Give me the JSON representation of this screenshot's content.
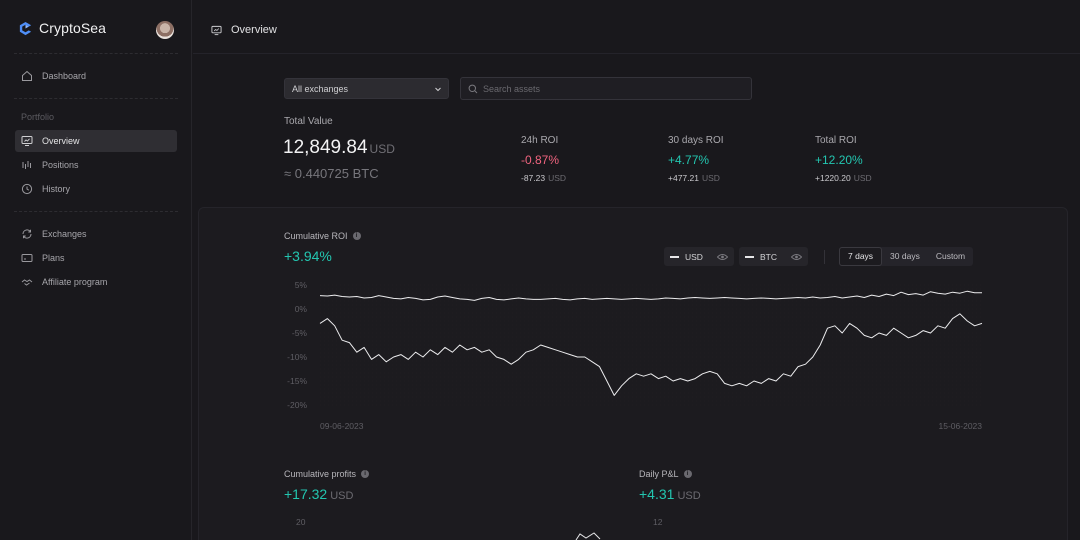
{
  "brand": {
    "name": "CryptoSea"
  },
  "sidebar": {
    "top_items": [
      {
        "label": "Dashboard",
        "icon": "home-icon"
      }
    ],
    "section_label": "Portfolio",
    "portfolio_items": [
      {
        "label": "Overview",
        "icon": "monitor-icon",
        "active": true
      },
      {
        "label": "Positions",
        "icon": "bars-icon"
      },
      {
        "label": "History",
        "icon": "clock-icon"
      }
    ],
    "bottom_items": [
      {
        "label": "Exchanges",
        "icon": "refresh-icon"
      },
      {
        "label": "Plans",
        "icon": "card-icon"
      },
      {
        "label": "Affiliate program",
        "icon": "handshake-icon"
      }
    ]
  },
  "header": {
    "title": "Overview"
  },
  "filters": {
    "exchange_selected": "All exchanges",
    "search_placeholder": "Search assets"
  },
  "totals": {
    "label": "Total Value",
    "value": "12,849.84",
    "unit": "USD",
    "btc": "≈ 0.440725 BTC"
  },
  "roi": [
    {
      "label": "24h ROI",
      "pct": "-0.87%",
      "abs": "-87.23",
      "unit": "USD",
      "color": "#f0647f"
    },
    {
      "label": "30 days ROI",
      "pct": "+4.77%",
      "abs": "+477.21",
      "unit": "USD",
      "color": "#23c6b0"
    },
    {
      "label": "Total ROI",
      "pct": "+12.20%",
      "abs": "+1220.20",
      "unit": "USD",
      "color": "#23c6b0"
    }
  ],
  "cumulative_roi": {
    "label": "Cumulative ROI",
    "value": "+3.94%",
    "toggles": [
      {
        "label": "USD"
      },
      {
        "label": "BTC"
      }
    ],
    "ranges": [
      {
        "label": "7 days",
        "active": true
      },
      {
        "label": "30 days"
      },
      {
        "label": "Custom"
      }
    ]
  },
  "chart_data": {
    "type": "line",
    "xlabel": "",
    "ylabel": "",
    "x_start": "09-06-2023",
    "x_end": "15-06-2023",
    "y_ticks": [
      "5%",
      "0%",
      "-5%",
      "-10%",
      "-15%",
      "-20%"
    ],
    "ylim": [
      -20,
      5
    ],
    "series": [
      {
        "values": [
          2.8,
          2.7,
          2.9,
          2.6,
          2.5,
          2.6,
          2.3,
          2.4,
          2.8,
          2.5,
          2.2,
          2.1,
          2.4,
          2.2,
          1.9,
          2.0,
          2.5,
          2.7,
          2.4,
          2.1,
          2.0,
          1.8,
          2.2,
          2.4,
          2.0,
          1.9,
          2.1,
          2.3,
          2.1,
          2.0,
          2.0,
          2.1,
          2.2,
          2.0,
          1.9,
          2.1,
          2.2,
          2.0,
          2.1,
          2.2,
          2.1,
          2.0,
          2.1,
          2.2,
          2.1,
          2.0,
          2.1,
          2.3,
          2.2,
          2.1,
          2.3,
          2.4,
          2.3,
          2.2,
          2.3,
          2.4,
          2.3,
          2.2,
          2.1,
          2.2,
          2.3,
          2.2,
          2.1,
          2.2,
          2.3,
          2.4,
          2.3,
          2.5,
          2.3,
          2.4,
          2.6,
          2.3,
          2.5,
          2.7,
          2.4,
          2.9,
          2.6,
          3.1,
          2.8,
          3.5,
          3.0,
          3.2,
          2.9,
          3.6,
          3.3,
          3.1,
          3.5,
          3.3,
          3.7,
          3.4,
          3.4
        ]
      },
      {
        "values": [
          -3.0,
          -2.0,
          -3.5,
          -6.5,
          -7.0,
          -9.0,
          -8.0,
          -10.5,
          -9.5,
          -11.0,
          -10.0,
          -9.5,
          -10.5,
          -9.0,
          -10.0,
          -8.5,
          -9.5,
          -8.0,
          -9.0,
          -7.5,
          -8.5,
          -8.0,
          -9.0,
          -8.5,
          -10.0,
          -10.5,
          -11.5,
          -10.5,
          -9.0,
          -8.5,
          -7.5,
          -8.0,
          -8.5,
          -9.0,
          -9.5,
          -10.0,
          -10.0,
          -11.0,
          -12.0,
          -15.0,
          -18.0,
          -16.0,
          -14.5,
          -13.5,
          -14.0,
          -13.5,
          -14.5,
          -14.0,
          -15.0,
          -14.5,
          -15.0,
          -14.5,
          -13.5,
          -13.0,
          -13.5,
          -15.5,
          -16.0,
          -15.5,
          -16.0,
          -15.0,
          -15.5,
          -14.5,
          -15.0,
          -13.5,
          -14.0,
          -12.0,
          -11.5,
          -10.0,
          -7.5,
          -4.0,
          -3.5,
          -5.0,
          -3.0,
          -4.0,
          -5.5,
          -6.0,
          -5.0,
          -5.5,
          -4.0,
          -5.0,
          -6.0,
          -5.5,
          -4.5,
          -5.0,
          -3.5,
          -4.0,
          -2.0,
          -1.0,
          -2.5,
          -3.5,
          -3.0
        ]
      }
    ]
  },
  "cumulative_profits": {
    "label": "Cumulative profits",
    "value": "+17.32",
    "unit": "USD",
    "y_top": "20"
  },
  "daily_pnl": {
    "label": "Daily P&L",
    "value": "+4.31",
    "unit": "USD",
    "y_top": "12"
  }
}
